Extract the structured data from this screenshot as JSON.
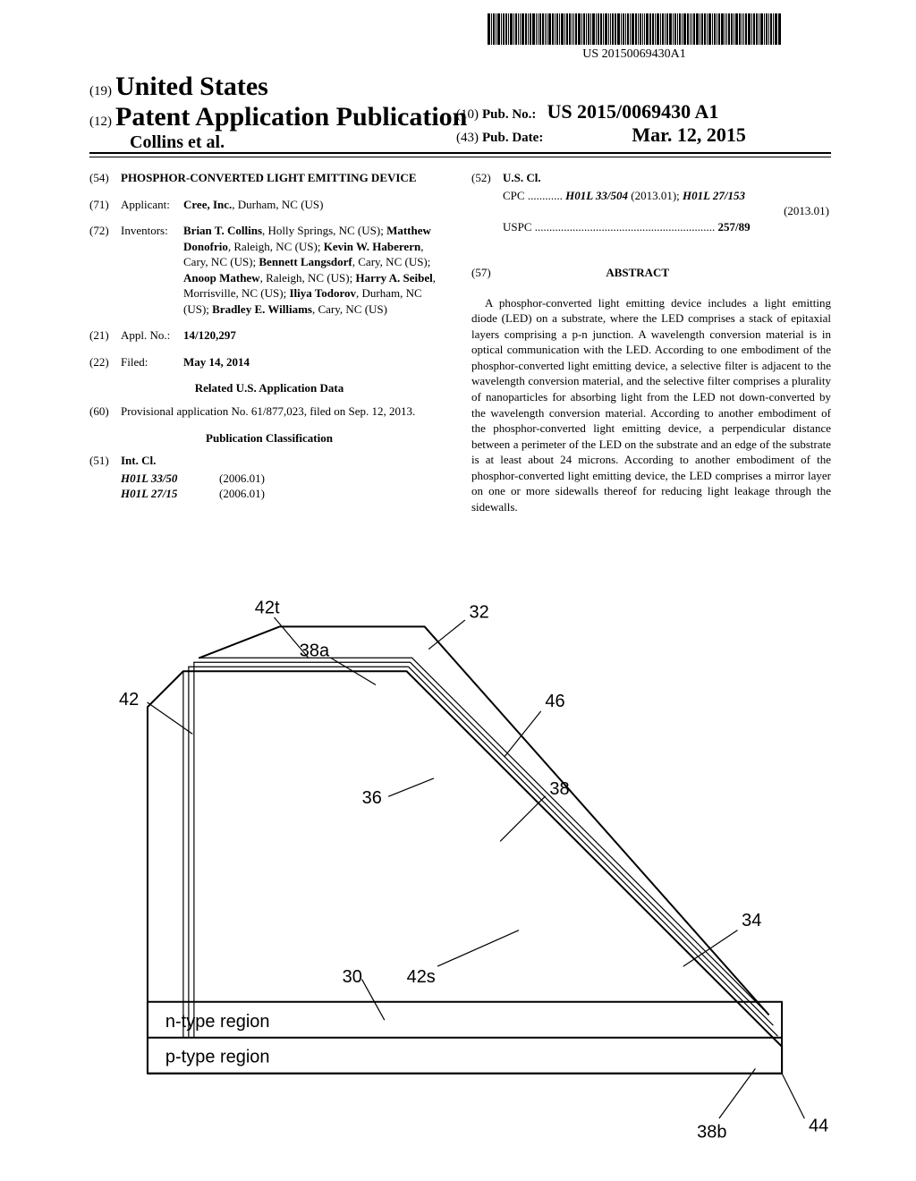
{
  "barcode_text": "US 20150069430A1",
  "header": {
    "code19": "(19)",
    "country": "United States",
    "code12": "(12)",
    "pubtype": "Patent Application Publication",
    "author_line": "Collins et al.",
    "code10": "(10)",
    "pubno_label": "Pub. No.:",
    "pubno_value": "US 2015/0069430 A1",
    "code43": "(43)",
    "pubdate_label": "Pub. Date:",
    "pubdate_value": "Mar. 12, 2015"
  },
  "left_col": {
    "f54": {
      "code": "(54)",
      "title": "PHOSPHOR-CONVERTED LIGHT EMITTING DEVICE"
    },
    "f71": {
      "code": "(71)",
      "label": "Applicant:",
      "text_bold": "Cree, Inc.",
      "text_rest": ", Durham, NC (US)"
    },
    "f72": {
      "code": "(72)",
      "label": "Inventors:",
      "inventors": [
        {
          "name": "Brian T. Collins",
          "loc": ", Holly Springs, NC (US); "
        },
        {
          "name": "Matthew Donofrio",
          "loc": ", Raleigh, NC (US); "
        },
        {
          "name": "Kevin W. Haberern",
          "loc": ", Cary, NC (US); "
        },
        {
          "name": "Bennett Langsdorf",
          "loc": ", Cary, NC (US); "
        },
        {
          "name": "Anoop Mathew",
          "loc": ", Raleigh, NC (US); "
        },
        {
          "name": "Harry A. Seibel",
          "loc": ", Morrisville, NC (US); "
        },
        {
          "name": "Iliya Todorov",
          "loc": ", Durham, NC (US); "
        },
        {
          "name": "Bradley E. Williams",
          "loc": ", Cary, NC (US)"
        }
      ]
    },
    "f21": {
      "code": "(21)",
      "label": "Appl. No.:",
      "value": "14/120,297"
    },
    "f22": {
      "code": "(22)",
      "label": "Filed:",
      "value": "May 14, 2014"
    },
    "related_heading": "Related U.S. Application Data",
    "f60": {
      "code": "(60)",
      "text": "Provisional application No. 61/877,023, filed on Sep. 12, 2013."
    },
    "pubclass_heading": "Publication Classification",
    "f51": {
      "code": "(51)",
      "label": "Int. Cl.",
      "rows": [
        {
          "cls": "H01L 33/50",
          "ver": "(2006.01)"
        },
        {
          "cls": "H01L 27/15",
          "ver": "(2006.01)"
        }
      ]
    }
  },
  "right_col": {
    "f52": {
      "code": "(52)",
      "label": "U.S. Cl.",
      "cpc_prefix": "CPC ............",
      "cpc1": "H01L 33/504",
      "cpc1_ver": " (2013.01); ",
      "cpc2": "H01L 27/153",
      "cpc2_ver": "(2013.01)",
      "uspc_prefix": "USPC ..............................................................",
      "uspc_val": " 257/89"
    },
    "abstract_code": "(57)",
    "abstract_heading": "ABSTRACT",
    "abstract_text": "A phosphor-converted light emitting device includes a light emitting diode (LED) on a substrate, where the LED comprises a stack of epitaxial layers comprising a p-n junction. A wavelength conversion material is in optical communication with the LED. According to one embodiment of the phosphor-converted light emitting device, a selective filter is adjacent to the wavelength conversion material, and the selective filter comprises a plurality of nanoparticles for absorbing light from the LED not down-converted by the wavelength conversion material. According to another embodiment of the phosphor-converted light emitting device, a perpendicular distance between a perimeter of the LED on the substrate and an edge of the substrate is at least about 24 microns. According to another embodiment of the phosphor-converted light emitting device, the LED comprises a mirror layer on one or more sidewalls thereof for reducing light leakage through the sidewalls."
  },
  "figure": {
    "labels": {
      "l42t": "42t",
      "l32": "32",
      "l38a": "38a",
      "l42": "42",
      "l46": "46",
      "l36": "36",
      "l38": "38",
      "l34": "34",
      "l42s": "42s",
      "l30": "30",
      "l38b": "38b",
      "l44": "44",
      "n_region": "n-type region",
      "p_region": "p-type region"
    },
    "stroke": "#000000",
    "stroke_width_main": 2,
    "stroke_width_thin": 1.2
  }
}
